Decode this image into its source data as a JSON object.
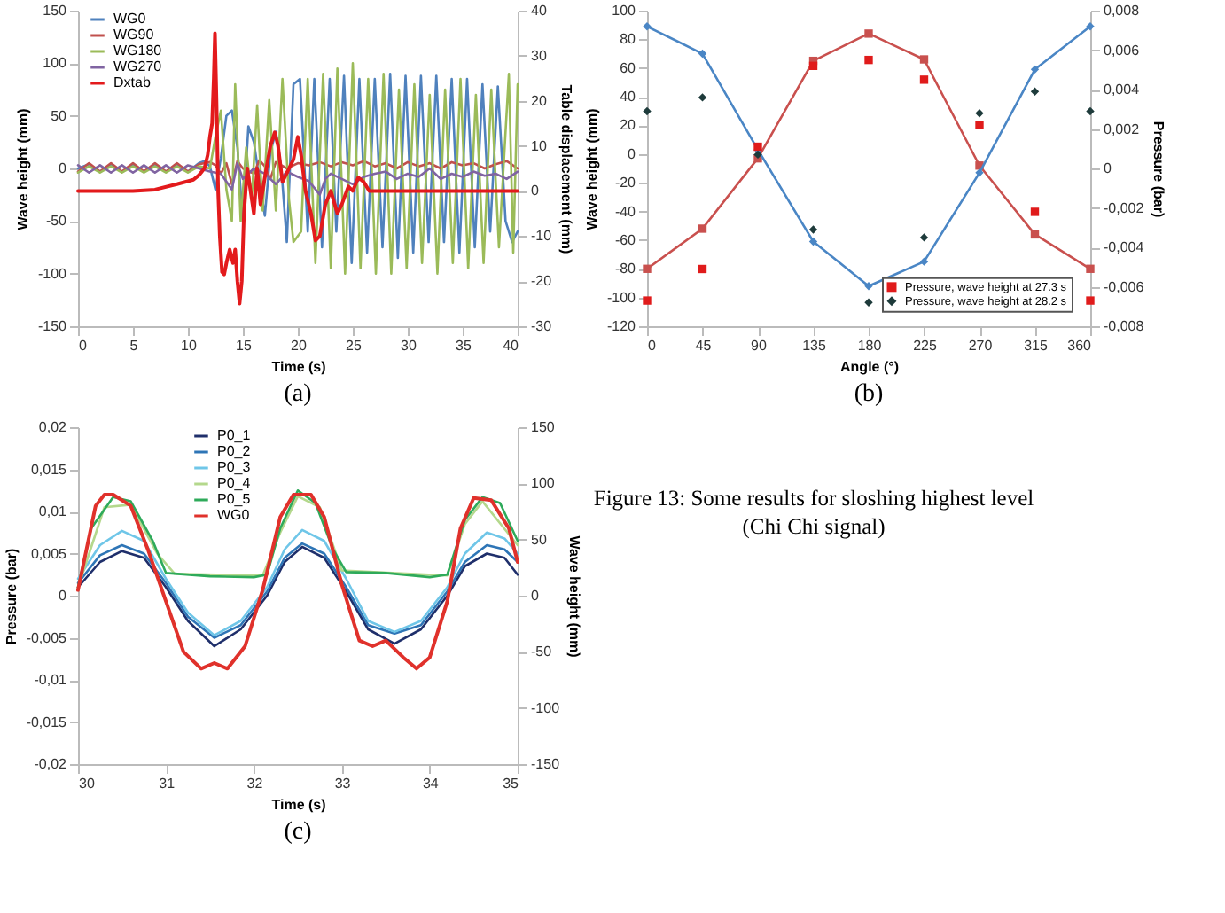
{
  "chart_data": [
    {
      "type": "line",
      "xlabel": "Time (s)",
      "ylabel": "Wave height (mm)",
      "y2label": "Table displacement (mm)",
      "annotations": [
        "(a)"
      ],
      "xlim": [
        0,
        40
      ],
      "xticks": [
        0,
        5,
        10,
        15,
        20,
        25,
        30,
        35,
        40
      ],
      "ylim": [
        -150,
        150
      ],
      "yticks": [
        -150,
        -100,
        -50,
        0,
        50,
        100,
        150
      ],
      "y2lim": [
        -30,
        40
      ],
      "y2ticks": [
        -30,
        -20,
        -10,
        0,
        10,
        20,
        30,
        40
      ],
      "legend": "top left",
      "marker": "none",
      "series": [
        {
          "name": "WG0",
          "color": "#4f81bd",
          "x": [
            0,
            1,
            2,
            3,
            4,
            5,
            6,
            7,
            8,
            9,
            10,
            11,
            11.5,
            12,
            12.5,
            13,
            13.5,
            14,
            14.5,
            15,
            15.5,
            16,
            16.5,
            17,
            17.5,
            18,
            18.5,
            19,
            19.6,
            20.2,
            20.9,
            21.5,
            22.2,
            22.9,
            23.5,
            24.2,
            24.9,
            25.6,
            26.3,
            27,
            27.7,
            28.4,
            29.1,
            29.8,
            30.5,
            31.2,
            31.9,
            32.6,
            33.3,
            34,
            34.7,
            35.4,
            36.1,
            36.8,
            37.5,
            38.2,
            38.9,
            39.5,
            40
          ],
          "values": [
            0,
            4,
            -3,
            4,
            -3,
            4,
            -3,
            4,
            -3,
            4,
            -3,
            5,
            7,
            2,
            -20,
            10,
            50,
            55,
            20,
            -50,
            40,
            25,
            -10,
            -45,
            15,
            35,
            0,
            -70,
            80,
            85,
            -60,
            85,
            -75,
            85,
            -60,
            88,
            -90,
            85,
            -80,
            85,
            -75,
            90,
            -85,
            88,
            -80,
            88,
            -70,
            88,
            -70,
            85,
            -80,
            85,
            -75,
            80,
            -60,
            78,
            -50,
            -70,
            -60
          ]
        },
        {
          "name": "WG90",
          "color": "#c0504d",
          "x": [
            0,
            1,
            2,
            3,
            4,
            5,
            6,
            7,
            8,
            9,
            10,
            11,
            12,
            12.5,
            13,
            13.5,
            14,
            14.5,
            15,
            16,
            16.5,
            17,
            17.5,
            18,
            19,
            20,
            21,
            22,
            23,
            24,
            25,
            26,
            27,
            28,
            29,
            30,
            31,
            32,
            33,
            34,
            35,
            36,
            37,
            38,
            39,
            40
          ],
          "values": [
            -3,
            5,
            -3,
            5,
            -3,
            5,
            -3,
            5,
            -3,
            5,
            -3,
            4,
            6,
            3,
            -5,
            5,
            -15,
            7,
            0,
            -5,
            8,
            2,
            -10,
            6,
            0,
            5,
            3,
            6,
            2,
            6,
            3,
            7,
            2,
            5,
            0,
            6,
            2,
            5,
            0,
            6,
            3,
            5,
            0,
            4,
            7,
            0
          ]
        },
        {
          "name": "WG180",
          "color": "#9bbb59",
          "x": [
            0,
            1,
            2,
            3,
            4,
            5,
            6,
            7,
            8,
            9,
            10,
            11,
            12,
            12.5,
            13,
            13.5,
            14,
            14.3,
            14.8,
            15.3,
            15.8,
            16.3,
            16.8,
            17.4,
            18,
            18.6,
            19.2,
            19.6,
            20.3,
            20.9,
            21.6,
            22.3,
            23,
            23.6,
            24.3,
            25,
            25.7,
            26.4,
            27.1,
            27.8,
            28.5,
            29.2,
            29.9,
            30.6,
            31.3,
            32,
            32.7,
            33.4,
            34.1,
            34.8,
            35.5,
            36.2,
            36.9,
            37.6,
            38.3,
            39.2,
            39.6,
            40
          ],
          "values": [
            -4,
            2,
            -4,
            2,
            -4,
            2,
            -4,
            2,
            -4,
            2,
            -4,
            2,
            0,
            30,
            55,
            -20,
            -50,
            80,
            -50,
            20,
            -30,
            60,
            -40,
            65,
            -40,
            85,
            -30,
            -70,
            -60,
            85,
            -90,
            90,
            -95,
            95,
            -100,
            100,
            -95,
            85,
            -100,
            90,
            -100,
            75,
            -95,
            80,
            -90,
            70,
            -100,
            75,
            -90,
            85,
            -95,
            70,
            -90,
            75,
            -75,
            90,
            -80,
            80
          ]
        },
        {
          "name": "WG270",
          "color": "#8064a2",
          "x": [
            0,
            1,
            2,
            3,
            4,
            5,
            6,
            7,
            8,
            9,
            10,
            11,
            12,
            13,
            14,
            14.5,
            15,
            16,
            17,
            18,
            19,
            20,
            21,
            22,
            22.5,
            23,
            24,
            25,
            26,
            27,
            28,
            29,
            30,
            31,
            32,
            33,
            34,
            35,
            36,
            37,
            38,
            39,
            40
          ],
          "values": [
            3,
            -4,
            3,
            -4,
            3,
            -4,
            3,
            -4,
            3,
            -4,
            3,
            0,
            -3,
            -5,
            -20,
            5,
            -10,
            0,
            -5,
            -15,
            -3,
            -8,
            -12,
            -25,
            -10,
            -5,
            -10,
            -15,
            -8,
            -5,
            -3,
            -10,
            -5,
            -8,
            0,
            -10,
            -5,
            -8,
            -3,
            -7,
            -5,
            -10,
            -3
          ]
        },
        {
          "name": "Dxtab",
          "color": "#e31a1c",
          "axis": "y2",
          "x": [
            0,
            5,
            7,
            9,
            10.5,
            11,
            11.5,
            11.8,
            12,
            12.2,
            12.35,
            12.46,
            12.6,
            12.75,
            12.9,
            13.1,
            13.3,
            13.5,
            13.8,
            14.1,
            14.3,
            14.5,
            14.7,
            14.9,
            15.1,
            15.4,
            15.7,
            16,
            16.3,
            16.6,
            17,
            17.5,
            17.9,
            18.2,
            18.6,
            19,
            19.6,
            20,
            20.3,
            20.7,
            21.2,
            21.6,
            22,
            22.5,
            23,
            23.6,
            24,
            24.6,
            25,
            25.5,
            26,
            26.5,
            40
          ],
          "values": [
            0,
            0,
            0.3,
            1.5,
            2.5,
            3.5,
            5,
            8,
            12,
            15,
            25,
            35,
            20,
            0,
            -10,
            -18,
            -18.5,
            -16,
            -13,
            -16,
            -13,
            -20,
            -25,
            -20,
            -5,
            5,
            0,
            -5,
            5,
            -3,
            3,
            10,
            13,
            10,
            2,
            4,
            7,
            12,
            8,
            0,
            -5,
            -11,
            -10,
            -3,
            0,
            -5,
            -3,
            1,
            0,
            3,
            2,
            0,
            0
          ]
        }
      ]
    },
    {
      "type": "line",
      "xlabel": "Angle (°)",
      "ylabel": "Wave height (mm)",
      "y2label": "Pressure (bar)",
      "annotations": [
        "(b)"
      ],
      "x": [
        0,
        45,
        90,
        135,
        180,
        225,
        270,
        315,
        360
      ],
      "xlim": [
        0,
        360
      ],
      "xticks": [
        0,
        45,
        90,
        135,
        180,
        225,
        270,
        315,
        360
      ],
      "ylim": [
        -120,
        100
      ],
      "yticks": [
        -120,
        -100,
        -80,
        -60,
        -40,
        -20,
        0,
        20,
        40,
        60,
        80,
        100
      ],
      "y2lim": [
        -0.008,
        0.008
      ],
      "y2ticks": [
        {
          "value": -0.008,
          "label": "-0,008"
        },
        {
          "value": -0.006,
          "label": "-0,006"
        },
        {
          "value": -0.004,
          "label": "-0,004"
        },
        {
          "value": -0.002,
          "label": "-0,002"
        },
        0,
        {
          "value": 0.002,
          "label": "0,002"
        },
        {
          "value": 0.004,
          "label": "0,004"
        },
        {
          "value": 0.006,
          "label": "0,006"
        },
        {
          "value": 0.008,
          "label": "0,008"
        }
      ],
      "legend": "bottom right",
      "series": [
        {
          "type": "scatter",
          "name": "Pressure, wave height at 27.3 s",
          "axis": "y2",
          "marker": "square",
          "color": "#e01b1b",
          "values": [
            -0.0067,
            -0.0051,
            0.0011,
            0.0052,
            0.0055,
            0.0045,
            0.0022,
            -0.0022,
            -0.0067
          ]
        },
        {
          "type": "line",
          "marker": "square",
          "color": "#c9504e",
          "values": [
            -80,
            -52,
            -3,
            65,
            84,
            66,
            -8,
            -56,
            -80
          ]
        },
        {
          "type": "scatter",
          "name": "Pressure, wave height at 28.2 s",
          "axis": "y2",
          "marker": "diamond",
          "color": "#1e3b3b",
          "values": [
            0.0029,
            0.0036,
            0.0007,
            -0.0031,
            -0.0068,
            -0.0035,
            0.0028,
            0.0039,
            0.0029
          ]
        },
        {
          "type": "line",
          "marker": "diamond",
          "color": "#4a86c5",
          "values": [
            89,
            70,
            3,
            -61,
            -92,
            -75,
            -13,
            59,
            89
          ]
        }
      ]
    },
    {
      "type": "line",
      "xlabel": "Time (s)",
      "ylabel": "Pressure (bar)",
      "y2label": "Wave height (mm)",
      "annotations": [
        "(c)"
      ],
      "xlim": [
        30,
        35
      ],
      "xticks": [
        30,
        31,
        32,
        33,
        34,
        35
      ],
      "ylim": [
        -0.02,
        0.02
      ],
      "yticks": [
        {
          "value": -0.02,
          "label": "-0,02"
        },
        {
          "value": -0.015,
          "label": "-0,015"
        },
        {
          "value": -0.01,
          "label": "-0,01"
        },
        {
          "value": -0.005,
          "label": "-0,005"
        },
        0,
        {
          "value": 0.005,
          "label": "0,005"
        },
        {
          "value": 0.01,
          "label": "0,01"
        },
        {
          "value": 0.015,
          "label": "0,015"
        },
        {
          "value": 0.02,
          "label": "0,02"
        }
      ],
      "y2lim": [
        -150,
        150
      ],
      "y2ticks": [
        -150,
        -100,
        -50,
        0,
        50,
        100,
        150
      ],
      "legend": "top",
      "marker": "none",
      "series": [
        {
          "name": "P0_1",
          "color": "#1f2f6b",
          "x": [
            30,
            30.25,
            30.5,
            30.75,
            31,
            31.25,
            31.55,
            31.85,
            32.15,
            32.35,
            32.55,
            32.8,
            33.05,
            33.3,
            33.6,
            33.9,
            34.2,
            34.4,
            34.65,
            34.85,
            35
          ],
          "values": [
            0.001,
            0.004,
            0.0053,
            0.0045,
            0.001,
            -0.003,
            -0.006,
            -0.004,
            0,
            0.004,
            0.0058,
            0.0045,
            0.0005,
            -0.004,
            -0.0057,
            -0.004,
            0,
            0.0035,
            0.005,
            0.0045,
            0.0025
          ]
        },
        {
          "name": "P0_2",
          "color": "#2e75b6",
          "x": [
            30,
            30.25,
            30.5,
            30.75,
            31,
            31.25,
            31.55,
            31.85,
            32.15,
            32.35,
            32.55,
            32.8,
            33.05,
            33.3,
            33.6,
            33.9,
            34.2,
            34.4,
            34.65,
            34.85,
            35
          ],
          "values": [
            0.0015,
            0.0048,
            0.006,
            0.005,
            0.0015,
            -0.0025,
            -0.005,
            -0.0035,
            0.0005,
            0.0045,
            0.0062,
            0.005,
            0.001,
            -0.0035,
            -0.0045,
            -0.0035,
            0.0005,
            0.004,
            0.006,
            0.0055,
            0.004
          ]
        },
        {
          "name": "P0_3",
          "color": "#6fc6e8",
          "x": [
            30,
            30.25,
            30.5,
            30.75,
            31,
            31.25,
            31.55,
            31.85,
            32.15,
            32.35,
            32.55,
            32.8,
            33.05,
            33.3,
            33.6,
            33.9,
            34.2,
            34.4,
            34.65,
            34.85,
            35
          ],
          "values": [
            0.002,
            0.006,
            0.0077,
            0.0065,
            0.002,
            -0.002,
            -0.0047,
            -0.003,
            0.001,
            0.0055,
            0.0078,
            0.0065,
            0.002,
            -0.003,
            -0.0043,
            -0.003,
            0.001,
            0.005,
            0.0075,
            0.0068,
            0.005
          ]
        },
        {
          "name": "P0_4",
          "color": "#b4d88c",
          "x": [
            30,
            30.3,
            30.6,
            30.9,
            31.1,
            32.1,
            32.3,
            32.5,
            32.75,
            33,
            34.2,
            34.4,
            34.6,
            35
          ],
          "values": [
            0.001,
            0.0105,
            0.0108,
            0.005,
            0.0026,
            0.0024,
            0.0075,
            0.0118,
            0.0105,
            0.003,
            0.0024,
            0.0085,
            0.0112,
            0.006
          ]
        },
        {
          "name": "P0_5",
          "color": "#2eaa5a",
          "x": [
            30,
            30.15,
            30.4,
            30.6,
            30.85,
            31,
            31.5,
            32,
            32.15,
            32.3,
            32.5,
            32.7,
            32.9,
            33.05,
            33.5,
            34,
            34.2,
            34.4,
            34.6,
            34.8,
            35
          ],
          "values": [
            0.001,
            0.008,
            0.0117,
            0.0112,
            0.0065,
            0.0027,
            0.0023,
            0.0022,
            0.0025,
            0.008,
            0.0125,
            0.011,
            0.0055,
            0.0028,
            0.0027,
            0.0022,
            0.0025,
            0.009,
            0.0117,
            0.011,
            0.0065
          ]
        },
        {
          "name": "WG0",
          "color": "#e0312b",
          "axis": "y2",
          "x": [
            30,
            30.2,
            30.3,
            30.4,
            30.6,
            30.8,
            31,
            31.2,
            31.4,
            31.55,
            31.7,
            31.9,
            32.1,
            32.3,
            32.45,
            32.65,
            32.8,
            33,
            33.2,
            33.35,
            33.5,
            33.7,
            33.85,
            34,
            34.2,
            34.35,
            34.5,
            34.7,
            34.9,
            35
          ],
          "values": [
            5,
            80,
            90,
            90,
            80,
            40,
            -5,
            -50,
            -65,
            -60,
            -65,
            -45,
            5,
            70,
            90,
            90,
            70,
            10,
            -40,
            -45,
            -40,
            -55,
            -65,
            -55,
            -5,
            60,
            87,
            85,
            60,
            30
          ]
        }
      ]
    },
    {
      "type": "other",
      "annotations": [
        "Figure 13: Some results for sloshing highest level",
        "(Chi Chi signal)"
      ]
    }
  ]
}
